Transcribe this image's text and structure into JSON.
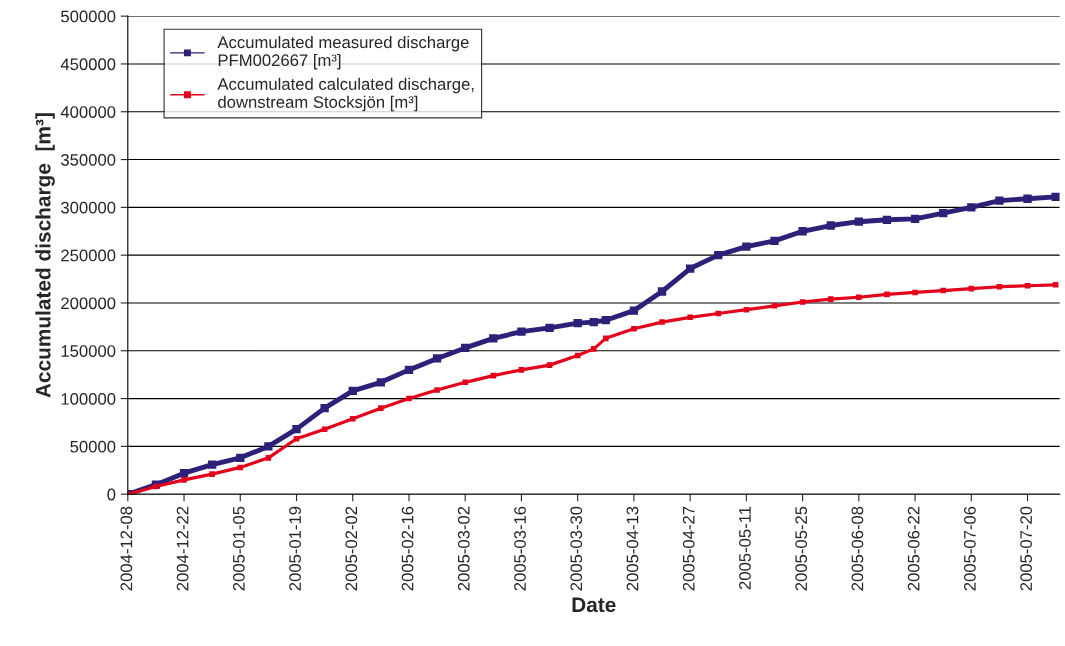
{
  "chart_data": {
    "type": "line",
    "xlabel": "Date",
    "ylabel": "Accumulated discharge  [m³]",
    "x": [
      "2004-12-08",
      "2004-12-15",
      "2004-12-22",
      "2004-12-29",
      "2005-01-05",
      "2005-01-12",
      "2005-01-19",
      "2005-01-26",
      "2005-02-02",
      "2005-02-09",
      "2005-02-16",
      "2005-02-23",
      "2005-03-02",
      "2005-03-09",
      "2005-03-16",
      "2005-03-23",
      "2005-03-30",
      "2005-04-03",
      "2005-04-06",
      "2005-04-13",
      "2005-04-20",
      "2005-04-27",
      "2005-05-04",
      "2005-05-11",
      "2005-05-18",
      "2005-05-25",
      "2005-06-01",
      "2005-06-08",
      "2005-06-15",
      "2005-06-22",
      "2005-06-29",
      "2005-07-06",
      "2005-07-13",
      "2005-07-20",
      "2005-07-27"
    ],
    "series": [
      {
        "name": "Accumulated measured discharge\nPFM002667 [m³]",
        "color": "#2b2178",
        "values": [
          0,
          10000,
          22000,
          31000,
          38000,
          50000,
          68000,
          90000,
          108000,
          117000,
          130000,
          142000,
          153000,
          163000,
          170000,
          174000,
          179000,
          180000,
          182000,
          192000,
          212000,
          236000,
          250000,
          259000,
          265000,
          275000,
          281000,
          285000,
          287000,
          288000,
          294000,
          300000,
          307000,
          309000,
          311000
        ]
      },
      {
        "name": "Accumulated calculated discharge,\ndownstream Stocksjön [m³]",
        "color": "#e3001b",
        "values": [
          0,
          8000,
          15000,
          21000,
          28000,
          38000,
          58000,
          68000,
          79000,
          90000,
          100000,
          109000,
          117000,
          124000,
          130000,
          135000,
          145000,
          152000,
          163000,
          173000,
          180000,
          185000,
          189000,
          193000,
          197000,
          201000,
          204000,
          206000,
          209000,
          211000,
          213000,
          215000,
          217000,
          218000,
          219000
        ]
      }
    ],
    "xlim": [
      "2004-12-08",
      "2005-07-28"
    ],
    "xticks": [
      "2004-12-08",
      "2004-12-22",
      "2005-01-05",
      "2005-01-19",
      "2005-02-02",
      "2005-02-16",
      "2005-03-02",
      "2005-03-16",
      "2005-03-30",
      "2005-04-13",
      "2005-04-27",
      "2005-05-11",
      "2005-05-25",
      "2005-06-08",
      "2005-06-22",
      "2005-07-06",
      "2005-07-20"
    ],
    "ylim": [
      0,
      500000
    ],
    "yticks": [
      0,
      50000,
      100000,
      150000,
      200000,
      250000,
      300000,
      350000,
      400000,
      450000,
      500000
    ],
    "grid": "y",
    "legend": "top left",
    "marker": "square",
    "line_style": "solid"
  }
}
